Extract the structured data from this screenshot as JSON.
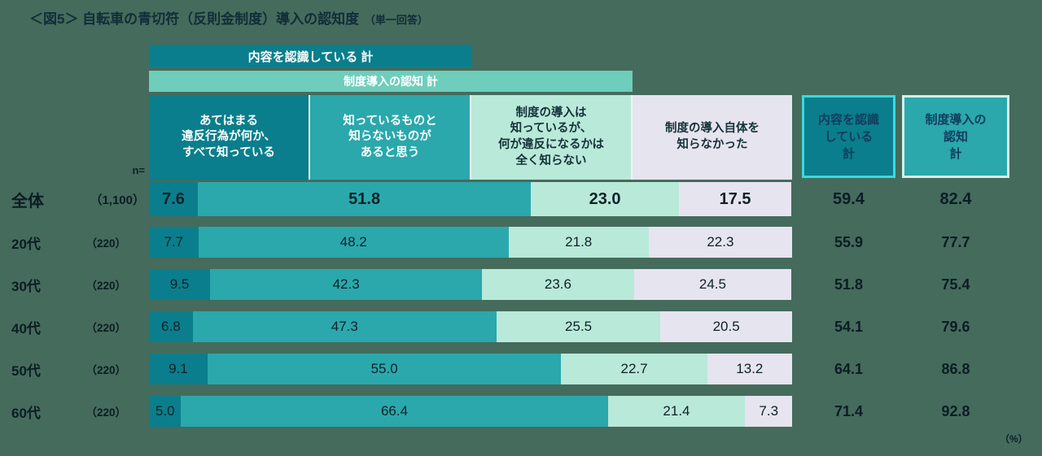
{
  "title": {
    "main": "＜図5＞ 自転車の青切符（反則金制度）導入の認知度",
    "suffix": "（単一回答）"
  },
  "n_label": "n=",
  "unit_label": "（%）",
  "chart_data": {
    "type": "bar",
    "orientation": "horizontal-stacked",
    "title": "自転車の青切符（反則金制度）導入の認知度（単一回答）",
    "unit": "%",
    "xlim": [
      0,
      100
    ],
    "grid": false,
    "legend_position": "top-headers",
    "bands": [
      {
        "label": "内容を認識している 計",
        "spans_categories": [
          0,
          1
        ]
      },
      {
        "label": "制度導入の認知 計",
        "spans_categories": [
          0,
          1,
          2
        ]
      }
    ],
    "categories": [
      "あてはまる\n違反行為が何か、\nすべて知っている",
      "知っているものと\n知らないものが\nあると思う",
      "制度の導入は\n知っているが、\n何が違反になるかは\n全く知らない",
      "制度の導入自体を\n知らなかった"
    ],
    "segment_colors": [
      "#0a7e8c",
      "#2aa8ac",
      "#b9e9d8",
      "#e6e4ee"
    ],
    "summary_columns": [
      "内容を認識\nしている\n計",
      "制度導入の\n認知\n計"
    ],
    "rows": [
      {
        "label": "全体",
        "n": "（1,100）",
        "values": [
          7.6,
          51.8,
          23.0,
          17.5
        ],
        "summaries": [
          59.4,
          82.4
        ],
        "emphasis": true
      },
      {
        "label": "20代",
        "n": "（220）",
        "values": [
          7.7,
          48.2,
          21.8,
          22.3
        ],
        "summaries": [
          55.9,
          77.7
        ]
      },
      {
        "label": "30代",
        "n": "（220）",
        "values": [
          9.5,
          42.3,
          23.6,
          24.5
        ],
        "summaries": [
          51.8,
          75.4
        ]
      },
      {
        "label": "40代",
        "n": "（220）",
        "values": [
          6.8,
          47.3,
          25.5,
          20.5
        ],
        "summaries": [
          54.1,
          79.6
        ]
      },
      {
        "label": "50代",
        "n": "（220）",
        "values": [
          9.1,
          55.0,
          22.7,
          13.2
        ],
        "summaries": [
          64.1,
          86.8
        ]
      },
      {
        "label": "60代",
        "n": "（220）",
        "values": [
          5.0,
          66.4,
          21.4,
          7.3
        ],
        "summaries": [
          71.4,
          92.8
        ]
      }
    ]
  }
}
